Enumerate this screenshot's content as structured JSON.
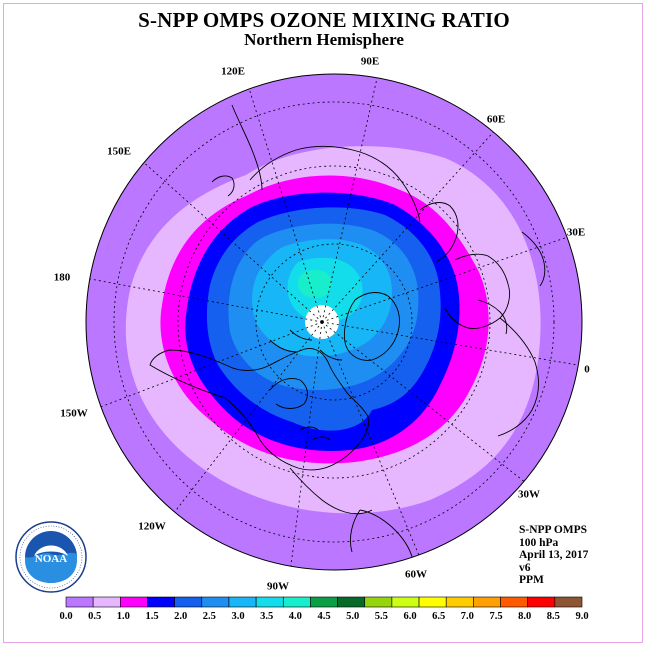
{
  "title": "S-NPP OMPS OZONE MIXING RATIO",
  "subtitle": "Northern Hemisphere",
  "longitude_labels": [
    "90E",
    "60E",
    "30E",
    "0",
    "30W",
    "60W",
    "90W",
    "120W",
    "150W",
    "180",
    "150E",
    "120E"
  ],
  "info_lines": [
    "S-NPP OMPS",
    "100 hPa",
    "April 13, 2017",
    "v6",
    "PPM"
  ],
  "logo": {
    "center_text": "NOAA",
    "ring_text": "NATIONAL OCEANIC AND ATMOSPHERIC ADMINISTRATION · U.S. DEPARTMENT OF COMMERCE"
  },
  "colorbar": {
    "labels": [
      "0.0",
      "0.5",
      "1.0",
      "1.5",
      "2.0",
      "2.5",
      "3.0",
      "3.5",
      "4.0",
      "4.5",
      "5.0",
      "5.5",
      "6.0",
      "6.5",
      "7.0",
      "7.5",
      "8.0",
      "8.5",
      "9.0"
    ],
    "colors": [
      "#bb77ff",
      "#e6b7ff",
      "#ff00ff",
      "#0000ff",
      "#1560ee",
      "#1f8ef2",
      "#17b6f6",
      "#13ddea",
      "#18eecc",
      "#0a9e46",
      "#066a2a",
      "#96d40c",
      "#ccff14",
      "#ffff00",
      "#ffcc00",
      "#ff9f00",
      "#ff5a00",
      "#ff0000",
      "#8e5533"
    ]
  },
  "map_zones": [
    {
      "level": "0.0-0.5",
      "color": "#bb77ff"
    },
    {
      "level": "0.5-1.0",
      "color": "#e6b7ff"
    },
    {
      "level": "1.0-1.5",
      "color": "#ff00ff"
    },
    {
      "level": "1.5-2.0",
      "color": "#0000ff"
    },
    {
      "level": "2.0-2.5",
      "color": "#1560ee"
    },
    {
      "level": "2.5-3.0",
      "color": "#1f8ef2"
    },
    {
      "level": "3.0-3.5",
      "color": "#17b6f6"
    },
    {
      "level": "3.5-4.0",
      "color": "#13ddea"
    },
    {
      "level": "4.0-4.5",
      "color": "#18eecc"
    }
  ]
}
